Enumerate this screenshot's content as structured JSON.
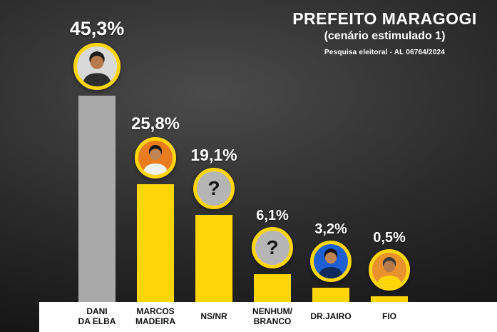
{
  "header": {
    "title": "PREFEITO MARAGOGI",
    "subtitle": "(cenário estimulado 1)",
    "source": "Pesquisa eleitoral - AL 06764/2024"
  },
  "chart_data": {
    "type": "bar",
    "title": "PREFEITO MARAGOGI",
    "subtitle": "(cenário estimulado 1)",
    "source": "Pesquisa eleitoral - AL 06764/2024",
    "ylim": [
      0,
      50
    ],
    "grid": false,
    "legend": false,
    "categories": [
      "DANI DA ELBA",
      "MARCOS MADEIRA",
      "NS/NR",
      "NENHUM/BRANCO",
      "DR.JAIRO",
      "FIO"
    ],
    "values": [
      45.3,
      25.8,
      19.1,
      6.1,
      3.2,
      0.5
    ],
    "colors": {
      "leader_bar": "#a9a9a9",
      "bar": "#ffd60a",
      "label_text": "#ffffff",
      "name_text": "#111111",
      "strip_bg": "#ffffff"
    },
    "bars": [
      {
        "name": "DANI\nDA ELBA",
        "value": 45.3,
        "label": "45,3%",
        "bar_color": "#a9a9a9",
        "avatar": {
          "type": "photo",
          "icon": "person",
          "bg": "#d9d9d9",
          "skin": "#b97a4b",
          "hair": "#1c1c1c",
          "shirt": "#2e2e2e"
        }
      },
      {
        "name": "MARCOS\nMADEIRA",
        "value": 25.8,
        "label": "25,8%",
        "bar_color": "#ffd60a",
        "avatar": {
          "type": "photo",
          "icon": "person",
          "bg": "#e87c1e",
          "skin": "#c08552",
          "hair": "#171717",
          "shirt": "#f2f2f2"
        }
      },
      {
        "name": "NS/NR",
        "value": 19.1,
        "label": "19,1%",
        "bar_color": "#ffd60a",
        "avatar": {
          "type": "question",
          "icon": "question-mark",
          "bg": "#b5b5b5",
          "glyph": "?"
        }
      },
      {
        "name": "NENHUM/\nBRANCO",
        "value": 6.1,
        "label": "6,1%",
        "bar_color": "#ffd60a",
        "avatar": {
          "type": "question",
          "icon": "question-mark",
          "bg": "#b5b5b5",
          "glyph": "?"
        }
      },
      {
        "name": "DR.JAIRO",
        "value": 3.2,
        "label": "3,2%",
        "bar_color": "#ffd60a",
        "avatar": {
          "type": "photo",
          "icon": "person",
          "bg": "#1d5fd2",
          "skin": "#c08552",
          "hair": "#141414",
          "shirt": "#0e2a5c"
        }
      },
      {
        "name": "FIO",
        "value": 0.5,
        "label": "0,5%",
        "bar_color": "#ffd60a",
        "avatar": {
          "type": "photo",
          "icon": "person",
          "bg": "#e8912d",
          "skin": "#b97a4b",
          "hair": "#3a3a3a",
          "shirt": "#ffd60a"
        }
      }
    ]
  }
}
